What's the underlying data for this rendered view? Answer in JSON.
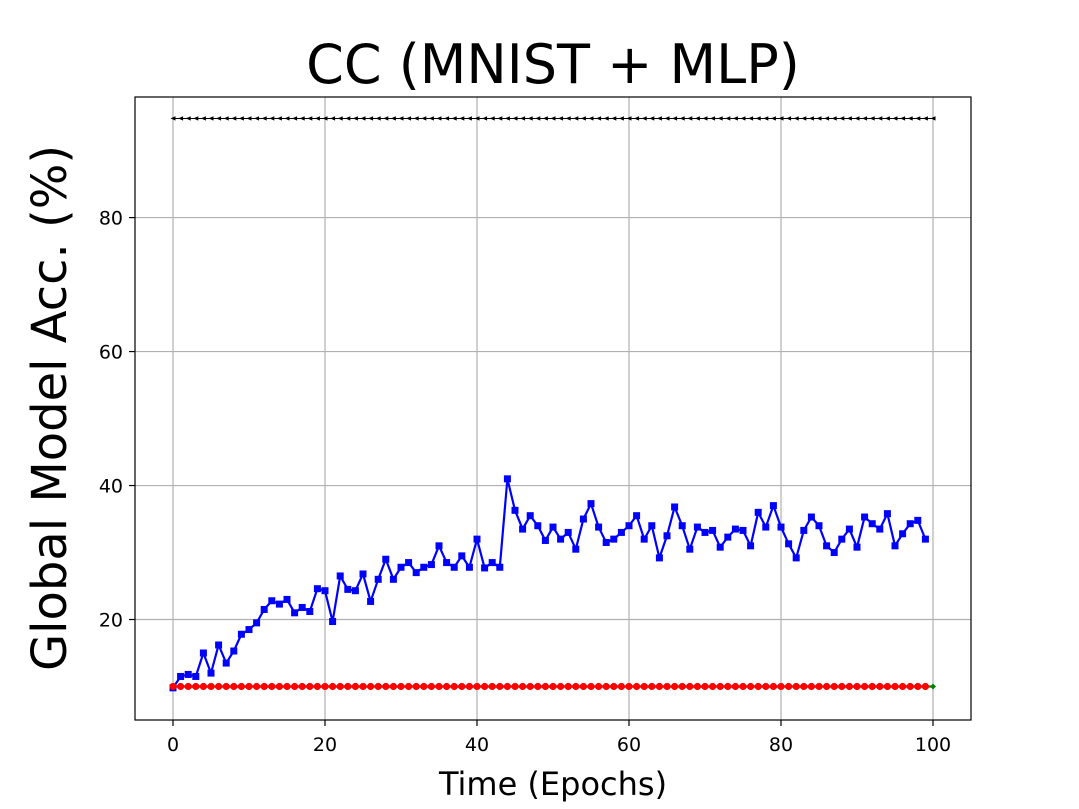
{
  "chart_data": {
    "type": "line",
    "title": "CC (MNIST + MLP)",
    "xlabel": "Time (Epochs)",
    "ylabel": "Global Model Acc. (%)",
    "xlim": [
      -5,
      105
    ],
    "ylim": [
      5,
      98
    ],
    "x_ticks": [
      0,
      20,
      40,
      60,
      80,
      100
    ],
    "y_ticks": [
      20,
      40,
      60,
      80
    ],
    "grid": true,
    "series": [
      {
        "color": "#000000",
        "marker": "triangle-left",
        "x_start": 0,
        "x_step": 1,
        "values": [
          94.8,
          94.8,
          94.8,
          94.8,
          94.8,
          94.8,
          94.8,
          94.8,
          94.8,
          94.8,
          94.8,
          94.8,
          94.8,
          94.8,
          94.8,
          94.8,
          94.8,
          94.8,
          94.8,
          94.8,
          94.8,
          94.8,
          94.8,
          94.8,
          94.8,
          94.8,
          94.8,
          94.8,
          94.8,
          94.8,
          94.8,
          94.8,
          94.8,
          94.8,
          94.8,
          94.8,
          94.8,
          94.8,
          94.8,
          94.8,
          94.8,
          94.8,
          94.8,
          94.8,
          94.8,
          94.8,
          94.8,
          94.8,
          94.8,
          94.8,
          94.8,
          94.8,
          94.8,
          94.8,
          94.8,
          94.8,
          94.8,
          94.8,
          94.8,
          94.8,
          94.8,
          94.8,
          94.8,
          94.8,
          94.8,
          94.8,
          94.8,
          94.8,
          94.8,
          94.8,
          94.8,
          94.8,
          94.8,
          94.8,
          94.8,
          94.8,
          94.8,
          94.8,
          94.8,
          94.8,
          94.8,
          94.8,
          94.8,
          94.8,
          94.8,
          94.8,
          94.8,
          94.8,
          94.8,
          94.8,
          94.8,
          94.8,
          94.8,
          94.8,
          94.8,
          94.8,
          94.8,
          94.8,
          94.8,
          94.8,
          94.8
        ]
      },
      {
        "color": "#008000",
        "marker": "diamond",
        "x_start": 0,
        "x_step": 1,
        "values": [
          10.0,
          10.0,
          10.0,
          10.0,
          10.0,
          10.0,
          10.0,
          10.0,
          10.0,
          10.0,
          10.0,
          10.0,
          10.0,
          10.0,
          10.0,
          10.0,
          10.0,
          10.0,
          10.0,
          10.0,
          10.0,
          10.0,
          10.0,
          10.0,
          10.0,
          10.0,
          10.0,
          10.0,
          10.0,
          10.0,
          10.0,
          10.0,
          10.0,
          10.0,
          10.0,
          10.0,
          10.0,
          10.0,
          10.0,
          10.0,
          10.0,
          10.0,
          10.0,
          10.0,
          10.0,
          10.0,
          10.0,
          10.0,
          10.0,
          10.0,
          10.0,
          10.0,
          10.0,
          10.0,
          10.0,
          10.0,
          10.0,
          10.0,
          10.0,
          10.0,
          10.0,
          10.0,
          10.0,
          10.0,
          10.0,
          10.0,
          10.0,
          10.0,
          10.0,
          10.0,
          10.0,
          10.0,
          10.0,
          10.0,
          10.0,
          10.0,
          10.0,
          10.0,
          10.0,
          10.0,
          10.0,
          10.0,
          10.0,
          10.0,
          10.0,
          10.0,
          10.0,
          10.0,
          10.0,
          10.0,
          10.0,
          10.0,
          10.0,
          10.0,
          10.0,
          10.0,
          10.0,
          10.0,
          10.0,
          10.0,
          10.0
        ]
      },
      {
        "color": "#0000ff",
        "marker": "square",
        "x_start": 0,
        "x_step": 1,
        "values": [
          9.8,
          11.5,
          11.8,
          11.5,
          15.0,
          12.0,
          16.2,
          13.5,
          15.3,
          17.8,
          18.5,
          19.5,
          21.5,
          22.8,
          22.3,
          23.0,
          21.0,
          21.8,
          21.2,
          24.6,
          24.3,
          19.7,
          26.5,
          24.5,
          24.3,
          26.8,
          22.7,
          26.0,
          29.0,
          26.0,
          27.8,
          28.5,
          27.0,
          27.8,
          28.2,
          31.0,
          28.5,
          27.8,
          29.5,
          27.8,
          32.0,
          27.7,
          28.5,
          27.8,
          41.0,
          36.3,
          33.5,
          35.5,
          34.0,
          31.8,
          33.8,
          32.0,
          33.0,
          30.5,
          35.0,
          37.3,
          33.8,
          31.5,
          32.0,
          33.0,
          34.0,
          35.5,
          32.0,
          34.0,
          29.2,
          32.5,
          36.8,
          34.0,
          30.5,
          33.8,
          33.0,
          33.3,
          30.8,
          32.3,
          33.5,
          33.3,
          31.0,
          36.0,
          33.8,
          37.0,
          33.8,
          31.3,
          29.2,
          33.3,
          35.3,
          34.0,
          31.0,
          30.0,
          32.0,
          33.5,
          30.8,
          35.3,
          34.3,
          33.5,
          35.8,
          31.0,
          32.8,
          34.3,
          34.8,
          32.0
        ]
      },
      {
        "color": "#ff0000",
        "marker": "circle",
        "x_start": 0,
        "x_step": 1,
        "values": [
          10.0,
          10.0,
          10.0,
          10.0,
          10.0,
          10.0,
          10.0,
          10.0,
          10.0,
          10.0,
          10.0,
          10.0,
          10.0,
          10.0,
          10.0,
          10.0,
          10.0,
          10.0,
          10.0,
          10.0,
          10.0,
          10.0,
          10.0,
          10.0,
          10.0,
          10.0,
          10.0,
          10.0,
          10.0,
          10.0,
          10.0,
          10.0,
          10.0,
          10.0,
          10.0,
          10.0,
          10.0,
          10.0,
          10.0,
          10.0,
          10.0,
          10.0,
          10.0,
          10.0,
          10.0,
          10.0,
          10.0,
          10.0,
          10.0,
          10.0,
          10.0,
          10.0,
          10.0,
          10.0,
          10.0,
          10.0,
          10.0,
          10.0,
          10.0,
          10.0,
          10.0,
          10.0,
          10.0,
          10.0,
          10.0,
          10.0,
          10.0,
          10.0,
          10.0,
          10.0,
          10.0,
          10.0,
          10.0,
          10.0,
          10.0,
          10.0,
          10.0,
          10.0,
          10.0,
          10.0,
          10.0,
          10.0,
          10.0,
          10.0,
          10.0,
          10.0,
          10.0,
          10.0,
          10.0,
          10.0,
          10.0,
          10.0,
          10.0,
          10.0,
          10.0,
          10.0,
          10.0,
          10.0,
          10.0,
          10.0
        ]
      }
    ]
  }
}
